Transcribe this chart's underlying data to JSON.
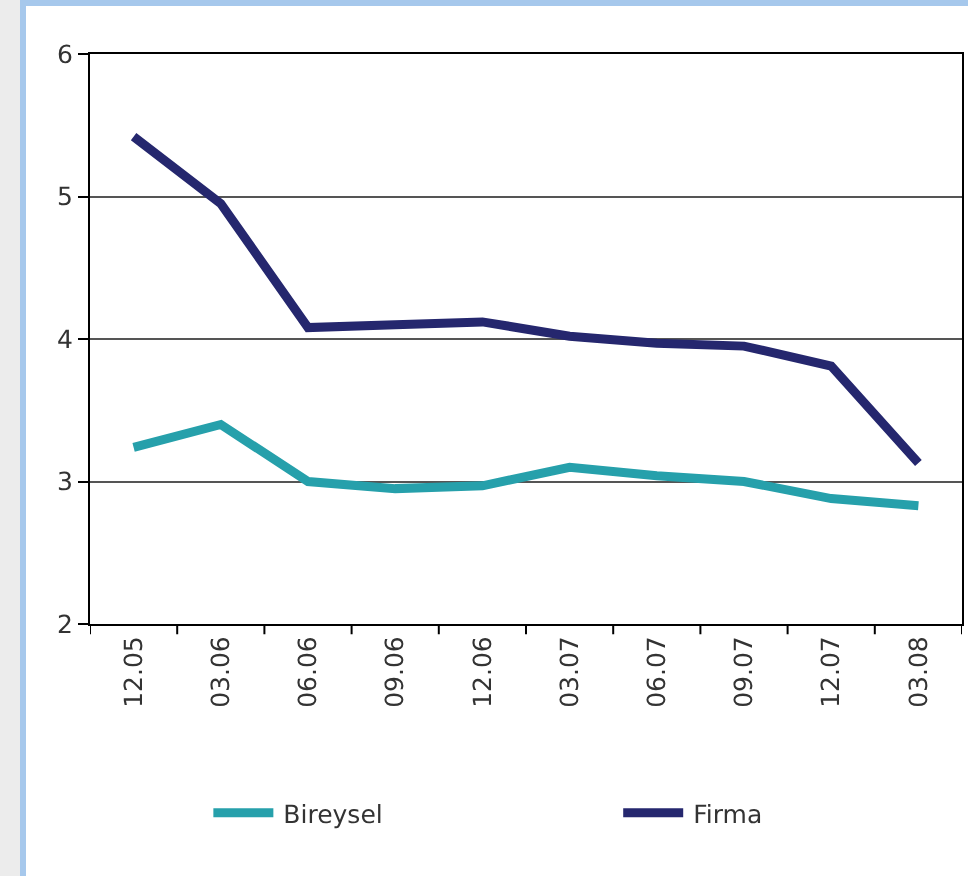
{
  "chart_data": {
    "type": "line",
    "categories": [
      "12.05",
      "03.06",
      "06.06",
      "09.06",
      "12.06",
      "03.07",
      "06.07",
      "09.07",
      "12.07",
      "03.08"
    ],
    "series": [
      {
        "name": "Bireysel",
        "color": "#26a0ab",
        "values": [
          3.24,
          3.4,
          3.0,
          2.95,
          2.97,
          3.1,
          3.04,
          3.0,
          2.88,
          2.83
        ]
      },
      {
        "name": "Firma",
        "color": "#25276e",
        "values": [
          5.42,
          4.95,
          4.08,
          4.1,
          4.12,
          4.02,
          3.97,
          3.95,
          3.81,
          3.13
        ]
      }
    ],
    "ylim": [
      2,
      6
    ],
    "yticks": [
      2,
      3,
      4,
      5,
      6
    ],
    "grid": "y",
    "legend": "bottom",
    "marker": "none",
    "line_style": "solid"
  }
}
